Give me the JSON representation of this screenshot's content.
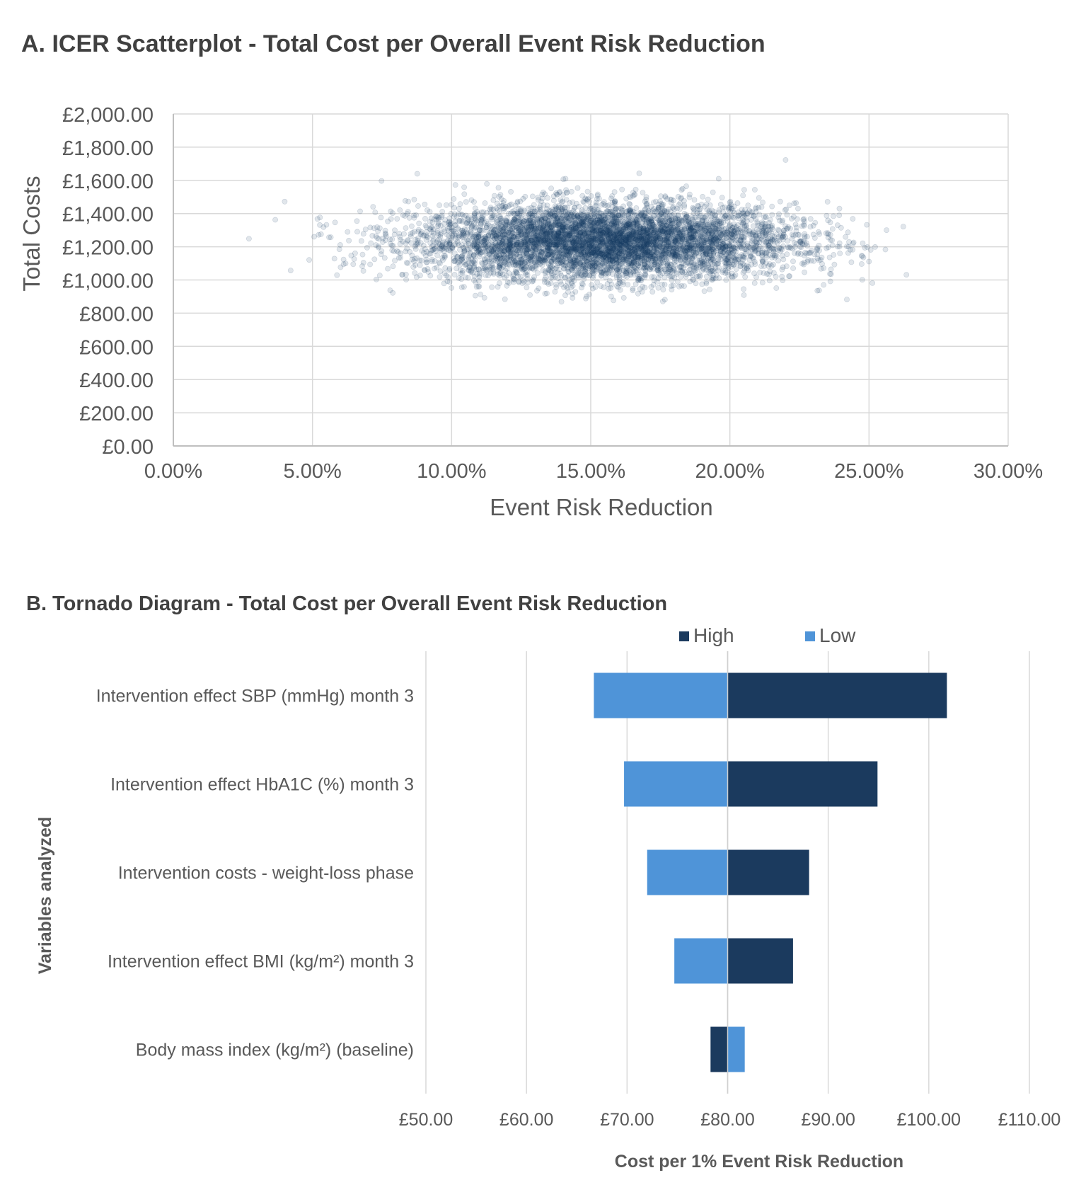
{
  "colors": {
    "scatter": "#1b3a66",
    "high": "#1b3a5e",
    "low": "#4f94d8",
    "grid": "#d9d9d9",
    "text": "#595959"
  },
  "chart_data": [
    {
      "type": "scatter",
      "title": "A. ICER Scatterplot - Total Cost per Overall Event Risk Reduction",
      "xlabel": "Event Risk Reduction",
      "ylabel": "Total Costs",
      "xlim": [
        0,
        0.3
      ],
      "ylim": [
        0,
        2000
      ],
      "x_ticks": [
        "0.00%",
        "5.00%",
        "10.00%",
        "15.00%",
        "20.00%",
        "25.00%",
        "30.00%"
      ],
      "y_ticks": [
        "£0.00",
        "£200.00",
        "£400.00",
        "£600.00",
        "£800.00",
        "£1,000.00",
        "£1,200.00",
        "£1,400.00",
        "£1,600.00",
        "£1,800.00",
        "£2,000.00"
      ],
      "grid": true,
      "distribution": {
        "x_mean": 0.155,
        "x_sd": 0.034,
        "x_range": [
          0.01,
          0.265
        ],
        "y_mean": 1230,
        "y_sd": 115,
        "y_range": [
          850,
          1740
        ],
        "n_points": 12000
      }
    },
    {
      "type": "bar",
      "title": "B. Tornado Diagram - Total Cost per Overall Event Risk Reduction",
      "xlabel": "Cost per 1% Event Risk Reduction",
      "ylabel": "Variables analyzed",
      "xlim": [
        50,
        110
      ],
      "x_ticks": [
        "£50.00",
        "£60.00",
        "£70.00",
        "£80.00",
        "£90.00",
        "£100.00",
        "£110.00"
      ],
      "base_value": 80,
      "legend": {
        "position": "top",
        "high": "High",
        "low": "Low"
      },
      "categories": [
        "Intervention effect SBP (mmHg) month 3",
        "Intervention effect HbA1C (%) month 3",
        "Intervention costs - weight-loss phase",
        "Intervention effect BMI (kg/m²) month 3",
        "Body mass index (kg/m²) (baseline)"
      ],
      "series": [
        {
          "name": "High",
          "values": [
            101.8,
            94.9,
            88.1,
            86.5,
            78.3
          ]
        },
        {
          "name": "Low",
          "values": [
            66.7,
            69.7,
            72.0,
            74.7,
            81.7
          ]
        }
      ]
    }
  ]
}
